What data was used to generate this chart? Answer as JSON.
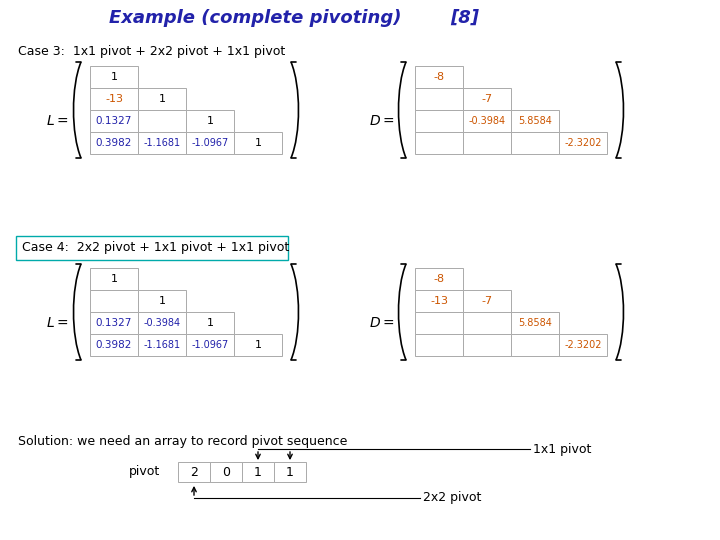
{
  "title": "Example (complete pivoting)",
  "title_ref": "[8]",
  "title_color": "#0000CC",
  "bg_color": "#FFFFFF",
  "case3_label": "Case 3:  1x1 pivot + 2x2 pivot + 1x1 pivot",
  "case4_label": "Case 4:  2x2 pivot + 1x1 pivot + 1x1 pivot",
  "solution_label": "Solution: we need an array to record pivot sequence",
  "pivot_label": "pivot",
  "pivot_values": [
    "2",
    "0",
    "1",
    "1"
  ],
  "label_1x1": "1x1 pivot",
  "label_2x2": "2x2 pivot",
  "orange_color": "#CC5500",
  "blue_color": "#2222AA",
  "black_color": "#000000",
  "gray_color": "#999999",
  "cell_edge_color": "#AAAAAA"
}
